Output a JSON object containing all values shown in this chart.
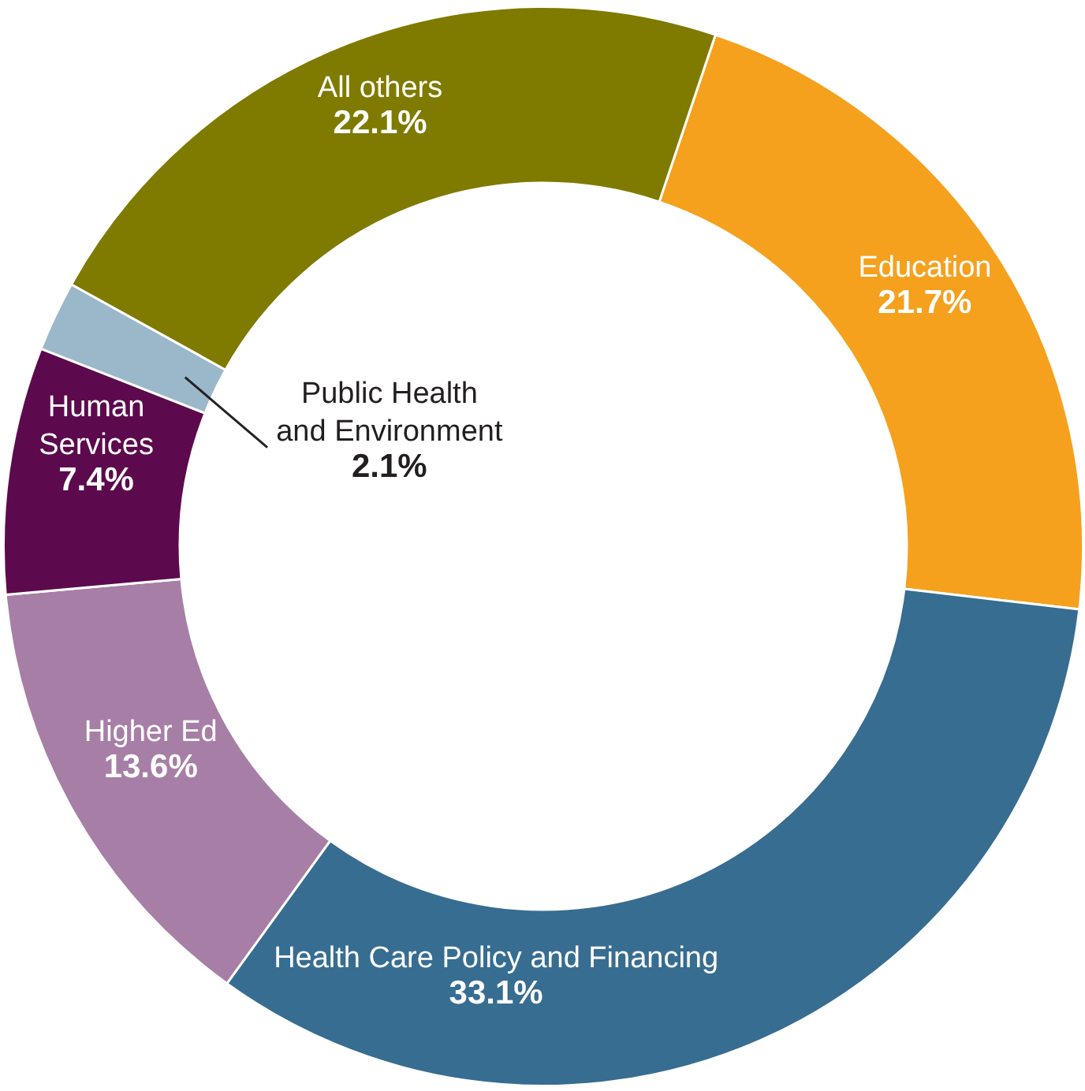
{
  "chart_data": {
    "type": "donut",
    "categories": [
      "Education",
      "Health Care Policy and Financing",
      "Higher Ed",
      "Human\nServices",
      "Public Health\nand Environment",
      "All others"
    ],
    "values": [
      21.7,
      33.1,
      13.6,
      7.4,
      2.1,
      22.1
    ],
    "value_labels": [
      "21.7%",
      "33.1%",
      "13.6%",
      "7.4%",
      "2.1%",
      "22.1%"
    ],
    "colors": [
      "#f5a11e",
      "#376d91",
      "#a77fa6",
      "#5c0a4d",
      "#9bb8ca",
      "#7f7a00"
    ]
  }
}
